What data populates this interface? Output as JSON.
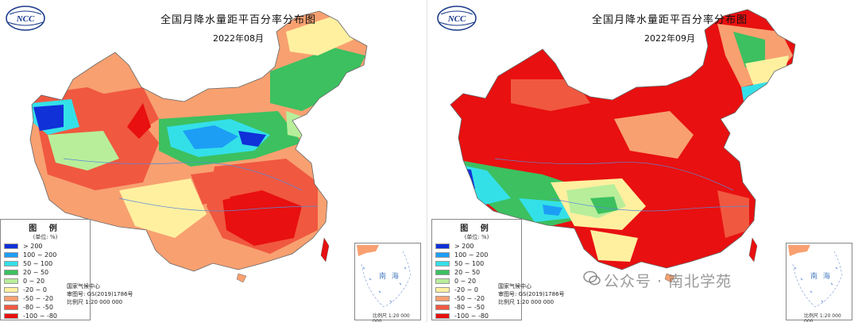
{
  "maps": [
    {
      "title": "全国月降水量距平百分率分布图",
      "date": "2022年08月",
      "logo_text": "NCC",
      "legend": {
        "title": "图 例",
        "unit": "(单位: %)",
        "items": [
          {
            "label": "> 200",
            "color": "#1030d8"
          },
          {
            "label": "100 ~ 200",
            "color": "#1c9ef5"
          },
          {
            "label": "50 ~ 100",
            "color": "#34e0e8"
          },
          {
            "label": "20 ~ 50",
            "color": "#3cc060"
          },
          {
            "label": "0 ~ 20",
            "color": "#b8ee9a"
          },
          {
            "label": "-20 ~ 0",
            "color": "#fff0a0"
          },
          {
            "label": "-50 ~ -20",
            "color": "#f8a070"
          },
          {
            "label": "-80 ~ -50",
            "color": "#f05840"
          },
          {
            "label": "-100 ~ -80",
            "color": "#e81010"
          }
        ]
      },
      "credit": [
        "国家气候中心",
        "审图号: GS(2019)1786号",
        "比例尺 1:20 000 000"
      ],
      "inset_label": "南 海",
      "inset_scale": "比例尺 1:20 000 000"
    },
    {
      "title": "全国月降水量距平百分率分布图",
      "date": "2022年09月",
      "logo_text": "NCC",
      "legend": {
        "title": "图 例",
        "unit": "(单位: %)",
        "items": [
          {
            "label": "> 200",
            "color": "#1030d8"
          },
          {
            "label": "100 ~ 200",
            "color": "#1c9ef5"
          },
          {
            "label": "50 ~ 100",
            "color": "#34e0e8"
          },
          {
            "label": "20 ~ 50",
            "color": "#3cc060"
          },
          {
            "label": "0 ~ 20",
            "color": "#b8ee9a"
          },
          {
            "label": "-20 ~ 0",
            "color": "#fff0a0"
          },
          {
            "label": "-50 ~ -20",
            "color": "#f8a070"
          },
          {
            "label": "-80 ~ -50",
            "color": "#f05840"
          },
          {
            "label": "-100 ~ -80",
            "color": "#e81010"
          }
        ]
      },
      "credit": [
        "国家气候中心",
        "审图号: GS(2019)1786号",
        "比例尺 1:20 000 000"
      ],
      "inset_label": "南 海",
      "inset_scale": "比例尺 1:20 000 000"
    }
  ],
  "watermark": "公众号 · 南北学苑"
}
